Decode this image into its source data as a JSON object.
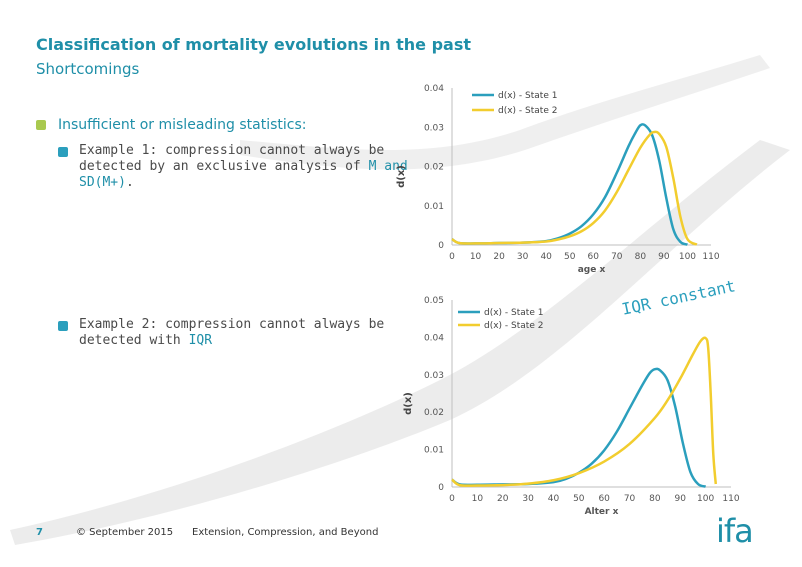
{
  "slide": {
    "title": "Classification of mortality evolutions in the past",
    "subtitle": "Shortcomings",
    "section_heading": "Insufficient or misleading statistics:",
    "example1": {
      "line1": "Example 1: compression cannot always be",
      "line2_pre": "detected by an exclusive analysis of ",
      "line2_hl": "M and",
      "line3_hl": "SD(M+)",
      "line3_post": "."
    },
    "example2": {
      "line1": "Example 2: compression cannot always be",
      "line2_pre": "detected with ",
      "line2_hl": "IQR"
    },
    "annotation": "IQR constant"
  },
  "footer": {
    "page_number": "7",
    "copyright": "© September 2015",
    "presentation_title": "Extension, Compression, and Beyond",
    "logo_text": "ifa"
  },
  "colors": {
    "accent": "#1f8fa8",
    "state1": "#2b9fbd",
    "state2": "#f2cd2e",
    "bullet_green": "#a9c94f"
  },
  "chart_data": [
    {
      "type": "line",
      "xlabel": "age x",
      "ylabel": "d(x)",
      "xlim": [
        0,
        110
      ],
      "ylim": [
        0,
        0.04
      ],
      "xticks": [
        "0",
        "10",
        "20",
        "30",
        "40",
        "50",
        "60",
        "70",
        "80",
        "90",
        "100",
        "110"
      ],
      "yticks": [
        "0",
        "0.01",
        "0.02",
        "0.03",
        "0.04"
      ],
      "legend_position": "top",
      "series": [
        {
          "name": "d(x) - State 1",
          "x": [
            0,
            3,
            10,
            20,
            30,
            40,
            45,
            50,
            55,
            60,
            65,
            70,
            75,
            78,
            80,
            82,
            85,
            88,
            91,
            94,
            97,
            100
          ],
          "y": [
            0.0015,
            0.0005,
            0.0004,
            0.0005,
            0.0006,
            0.001,
            0.0017,
            0.0029,
            0.0048,
            0.0078,
            0.0122,
            0.0184,
            0.0252,
            0.0287,
            0.0305,
            0.0305,
            0.028,
            0.0215,
            0.012,
            0.004,
            0.0008,
            0.0001
          ]
        },
        {
          "name": "d(x) - State 2",
          "x": [
            0,
            3,
            10,
            20,
            30,
            40,
            45,
            50,
            55,
            60,
            65,
            70,
            75,
            80,
            84,
            86,
            88,
            91,
            94,
            97,
            100,
            104
          ],
          "y": [
            0.0015,
            0.0005,
            0.0004,
            0.0005,
            0.0006,
            0.0009,
            0.0014,
            0.0022,
            0.0035,
            0.0056,
            0.0088,
            0.0135,
            0.0192,
            0.0248,
            0.0281,
            0.0288,
            0.0283,
            0.025,
            0.017,
            0.0072,
            0.0015,
            0.0001
          ]
        }
      ]
    },
    {
      "type": "line",
      "xlabel": "Alter x",
      "ylabel": "d(x)",
      "xlim": [
        0,
        110
      ],
      "ylim": [
        0,
        0.05
      ],
      "xticks": [
        "0",
        "10",
        "20",
        "30",
        "40",
        "50",
        "60",
        "70",
        "80",
        "90",
        "100",
        "110"
      ],
      "yticks": [
        "0",
        "0.01",
        "0.02",
        "0.03",
        "0.04",
        "0.05"
      ],
      "legend_position": "top-left",
      "series": [
        {
          "name": "d(x) - State 1",
          "x": [
            0,
            3,
            10,
            20,
            30,
            40,
            45,
            50,
            55,
            60,
            65,
            70,
            75,
            78,
            80,
            82,
            85,
            88,
            91,
            94,
            97,
            100
          ],
          "y": [
            0.002,
            0.0007,
            0.0006,
            0.0007,
            0.0008,
            0.0013,
            0.0022,
            0.0038,
            0.0062,
            0.0098,
            0.0148,
            0.021,
            0.0272,
            0.0305,
            0.0315,
            0.0312,
            0.0285,
            0.0215,
            0.0118,
            0.004,
            0.0008,
            0.0001
          ]
        },
        {
          "name": "d(x) - State 2",
          "x": [
            0,
            3,
            10,
            20,
            30,
            40,
            50,
            60,
            70,
            80,
            85,
            90,
            95,
            98,
            100,
            101,
            102,
            103,
            104
          ],
          "y": [
            0.002,
            0.0005,
            0.0004,
            0.0005,
            0.0009,
            0.0018,
            0.0037,
            0.0068,
            0.0115,
            0.0185,
            0.0232,
            0.029,
            0.0355,
            0.039,
            0.0398,
            0.0372,
            0.025,
            0.009,
            0.0008
          ]
        }
      ]
    }
  ]
}
